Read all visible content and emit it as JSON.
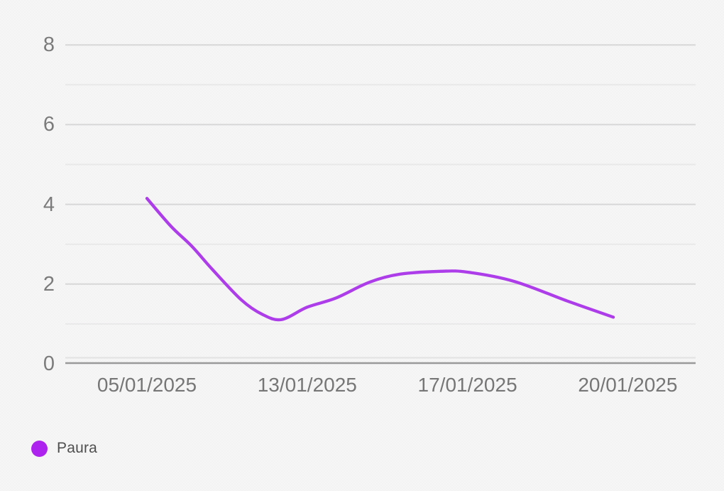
{
  "chart_data": {
    "type": "line",
    "title": "",
    "xlabel": "",
    "ylabel": "",
    "categories": [
      "05/01/2025",
      "13/01/2025",
      "17/01/2025",
      "20/01/2025"
    ],
    "series": [
      {
        "name": "Paura",
        "color": "#ad3cea",
        "values": [
          4.15,
          1.4,
          2.3,
          1.2
        ]
      }
    ],
    "curve_trace_category_units": [
      [
        0.0,
        4.15
      ],
      [
        0.15,
        3.45
      ],
      [
        0.28,
        2.95
      ],
      [
        0.41,
        2.36
      ],
      [
        0.59,
        1.6
      ],
      [
        0.72,
        1.24
      ],
      [
        0.84,
        1.11
      ],
      [
        1.0,
        1.42
      ],
      [
        1.18,
        1.65
      ],
      [
        1.39,
        2.05
      ],
      [
        1.58,
        2.25
      ],
      [
        1.83,
        2.32
      ],
      [
        2.0,
        2.3
      ],
      [
        2.29,
        2.07
      ],
      [
        2.62,
        1.58
      ],
      [
        2.91,
        1.17
      ]
    ],
    "ylim": [
      0,
      8
    ],
    "y_tick_labels": [
      "0",
      "2",
      "4",
      "6",
      "8"
    ],
    "y_gridline_values": [
      1,
      2,
      3,
      4,
      5,
      6,
      7,
      8
    ],
    "grid": "horizontal",
    "legend_position": "bottom-left"
  },
  "legend": {
    "items": [
      {
        "label": "Paura",
        "swatch_color": "#ae22f0"
      }
    ]
  },
  "colors": {
    "background": "#f7f6f7",
    "line": "#ad3cea",
    "legend_dot": "#ae22f0",
    "axis_line": "#9a9a9a",
    "zero_offset_line": "#e3e3e3",
    "gridline_major": "#d8d8d8",
    "gridline_minor": "#eaeaea",
    "tick_label": "#7b7b7b",
    "legend_text": "#4e4e4e"
  }
}
